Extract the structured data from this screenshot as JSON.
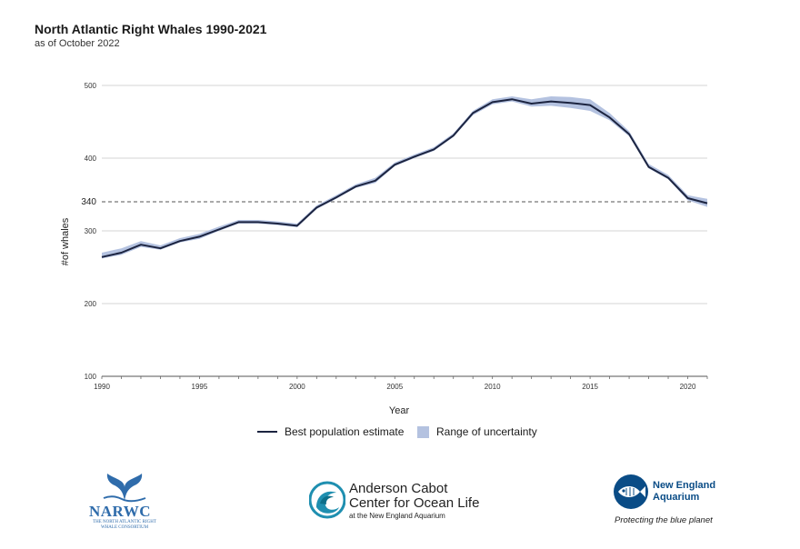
{
  "header": {
    "title": "North Atlantic Right Whales 1990-2021",
    "subtitle": "as of October 2022"
  },
  "chart_data": {
    "type": "line",
    "xlabel": "Year",
    "ylabel": "#of whales",
    "xlim": [
      1990,
      2021
    ],
    "ylim": [
      100,
      500
    ],
    "x_ticks": [
      1990,
      1995,
      2000,
      2005,
      2010,
      2015,
      2020
    ],
    "y_ticks": [
      100,
      200,
      300,
      400,
      500
    ],
    "reference_line": {
      "value": 340,
      "label": "340",
      "style": "dashed"
    },
    "grid": "horizontal",
    "colors": {
      "line": "#1c2440",
      "band": "#b4c2e0",
      "grid": "#d6d6d6"
    },
    "x": [
      1990,
      1991,
      1992,
      1993,
      1994,
      1995,
      1996,
      1997,
      1998,
      1999,
      2000,
      2001,
      2002,
      2003,
      2004,
      2005,
      2006,
      2007,
      2008,
      2009,
      2010,
      2011,
      2012,
      2013,
      2014,
      2015,
      2016,
      2017,
      2018,
      2019,
      2020,
      2021
    ],
    "series": [
      {
        "name": "Best population estimate",
        "values": [
          264,
          270,
          281,
          276,
          286,
          292,
          302,
          312,
          312,
          310,
          307,
          332,
          346,
          361,
          369,
          391,
          402,
          412,
          431,
          462,
          477,
          481,
          475,
          478,
          476,
          473,
          456,
          433,
          388,
          373,
          345,
          338
        ]
      }
    ],
    "uncertainty": {
      "name": "Range of uncertainty",
      "lower": [
        262,
        267,
        278,
        274,
        284,
        289,
        300,
        310,
        310,
        308,
        305,
        330,
        344,
        359,
        366,
        389,
        400,
        410,
        429,
        459,
        474,
        478,
        471,
        472,
        469,
        465,
        452,
        430,
        386,
        371,
        342,
        333
      ],
      "upper": [
        270,
        276,
        286,
        280,
        290,
        296,
        306,
        315,
        315,
        313,
        310,
        335,
        349,
        364,
        373,
        394,
        405,
        415,
        434,
        465,
        481,
        485,
        481,
        485,
        484,
        481,
        462,
        437,
        392,
        377,
        349,
        344
      ]
    },
    "legend": {
      "placement": "bottom-center",
      "entries": [
        "Best population estimate",
        "Range of uncertainty"
      ]
    }
  },
  "logos": {
    "narwc": {
      "name": "NARWC",
      "subtext": "THE NORTH ATLANTIC RIGHT WHALE CONSORTIUM"
    },
    "acc": {
      "name_line1": "Anderson Cabot",
      "name_line2": "Center for Ocean Life",
      "subtext": "at the New England Aquarium"
    },
    "nea": {
      "name_line1": "New England",
      "name_line2": "Aquarium",
      "tagline": "Protecting the blue planet"
    }
  }
}
